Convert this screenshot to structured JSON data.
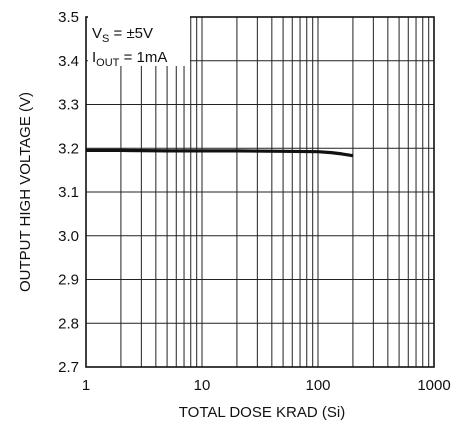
{
  "chart_data": {
    "type": "line",
    "xlabel": "TOTAL DOSE KRAD (Si)",
    "ylabel": "OUTPUT HIGH VOLTAGE (V)",
    "x_scale": "log",
    "xlim": [
      1,
      1000
    ],
    "ylim": [
      2.7,
      3.5
    ],
    "grid": true,
    "x_ticks": [
      "1",
      "10",
      "100",
      "1000"
    ],
    "y_ticks": [
      "2.7",
      "2.8",
      "2.9",
      "3.0",
      "3.1",
      "3.2",
      "3.3",
      "3.4",
      "3.5"
    ],
    "annotation": {
      "line1_main": "V",
      "line1_sub": "S",
      "line1_rest": " = ±5V",
      "line2_main": "I",
      "line2_sub": "OUT",
      "line2_rest": " = 1mA"
    },
    "series": [
      {
        "x": [
          1,
          2,
          5,
          10,
          20,
          50,
          100,
          130,
          160,
          200
        ],
        "y": [
          3.195,
          3.195,
          3.194,
          3.194,
          3.194,
          3.193,
          3.192,
          3.19,
          3.187,
          3.183
        ]
      }
    ],
    "line_color": "#111111"
  }
}
